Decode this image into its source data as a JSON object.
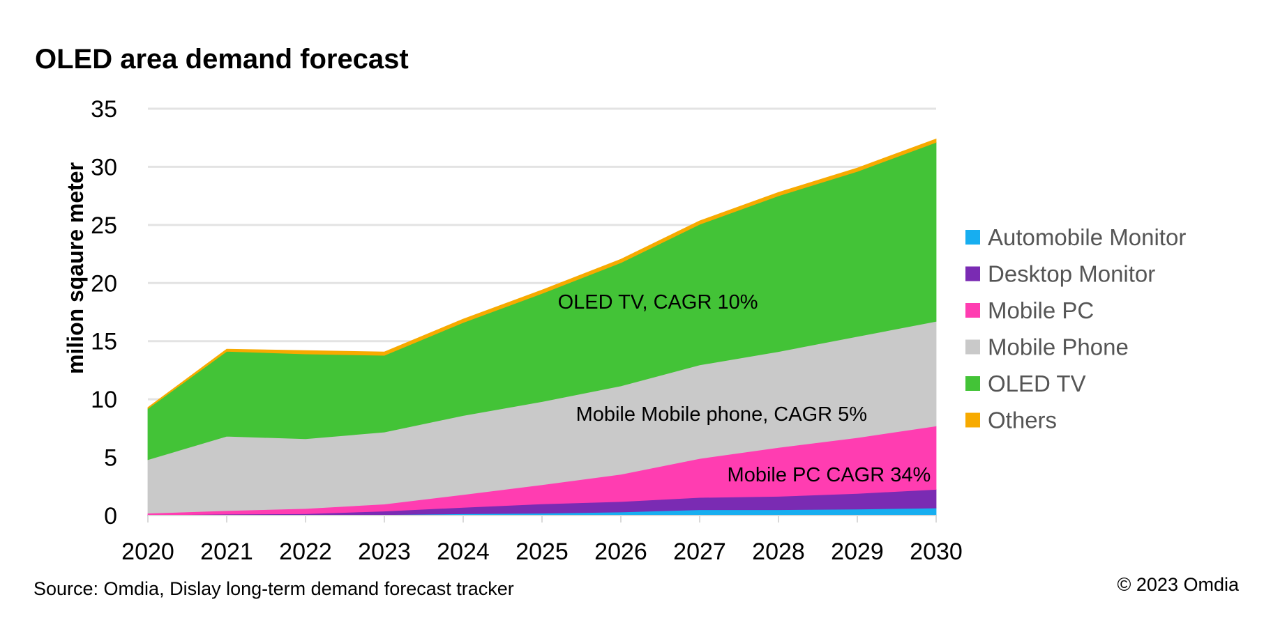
{
  "chart_data": {
    "type": "area",
    "stacked": true,
    "title": "OLED area demand forecast",
    "xlabel": "",
    "ylabel": "milion sqaure meter",
    "x": [
      "2020",
      "2021",
      "2022",
      "2023",
      "2024",
      "2025",
      "2026",
      "2027",
      "2028",
      "2029",
      "2030"
    ],
    "yticks": [
      "0",
      "5",
      "10",
      "15",
      "20",
      "25",
      "30",
      "35"
    ],
    "ylim": [
      0,
      35
    ],
    "grid": true,
    "legend_position": "right",
    "series": [
      {
        "name": "Automobile Monitor",
        "color": "#17AEF0",
        "values": [
          0.02,
          0.05,
          0.05,
          0.08,
          0.15,
          0.2,
          0.3,
          0.5,
          0.5,
          0.55,
          0.65
        ]
      },
      {
        "name": "Desktop Monitor",
        "color": "#7A2BB3",
        "values": [
          0.03,
          0.07,
          0.1,
          0.3,
          0.55,
          0.8,
          0.9,
          1.05,
          1.15,
          1.35,
          1.6
        ]
      },
      {
        "name": "Mobile PC",
        "color": "#FF3DB1",
        "values": [
          0.15,
          0.3,
          0.45,
          0.6,
          1.1,
          1.65,
          2.35,
          3.35,
          4.2,
          4.8,
          5.45
        ]
      },
      {
        "name": "Mobile Phone",
        "color": "#C9C9C9",
        "values": [
          4.6,
          6.4,
          6.0,
          6.2,
          6.8,
          7.15,
          7.6,
          8.05,
          8.25,
          8.7,
          9.0
        ]
      },
      {
        "name": "OLED TV",
        "color": "#43C337",
        "values": [
          4.4,
          7.3,
          7.3,
          6.6,
          8.0,
          9.3,
          10.6,
          12.1,
          13.4,
          14.2,
          15.4
        ]
      },
      {
        "name": "Others",
        "color": "#F7AA00",
        "values": [
          0.1,
          0.2,
          0.3,
          0.3,
          0.3,
          0.3,
          0.3,
          0.3,
          0.3,
          0.3,
          0.3
        ]
      }
    ],
    "annotations": [
      {
        "text": "OLED TV, CAGR 10%",
        "x": 5.2,
        "y": 18.4
      },
      {
        "text": "Mobile Mobile phone, CAGR 5%",
        "x": 5.43,
        "y": 8.75
      },
      {
        "text": "Mobile PC CAGR 34%",
        "x": 7.35,
        "y": 3.55
      }
    ],
    "source": "Source: Omdia, Dislay long-term demand forecast tracker",
    "copyright": "© 2023 Omdia"
  }
}
